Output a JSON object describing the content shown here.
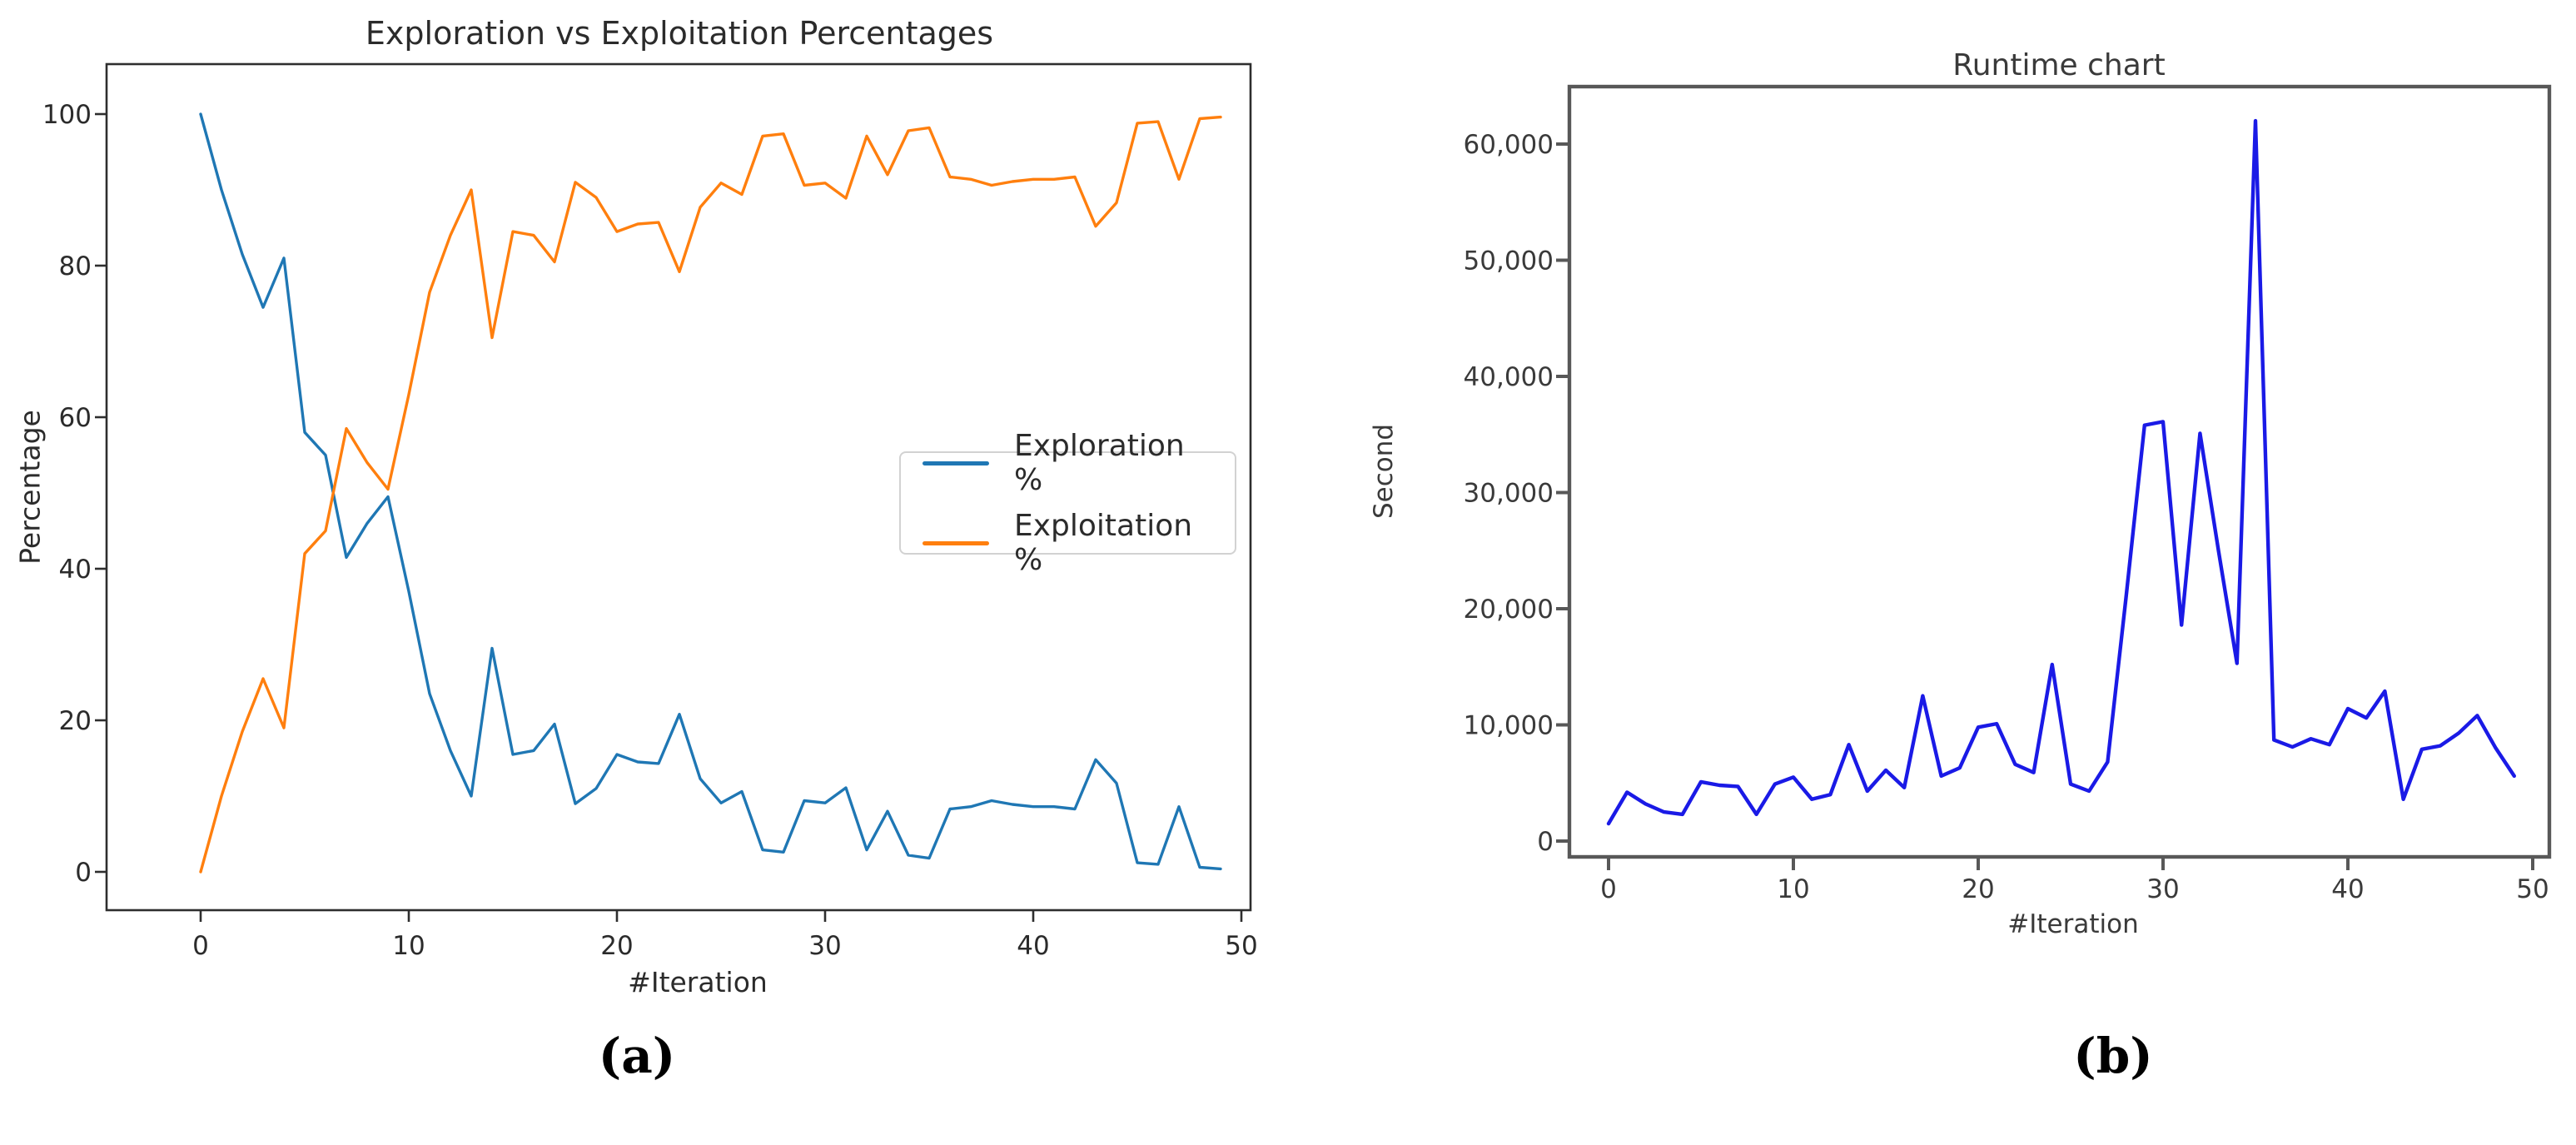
{
  "figure": {
    "caption_a": "(a)",
    "caption_b": "(b)"
  },
  "chart_data": [
    {
      "id": "exploration-vs-exploitation",
      "type": "line",
      "title": "Exploration vs Exploitation Percentages",
      "xlabel": "#Iteration",
      "ylabel": "Percentage",
      "grid": false,
      "xlim": [
        -4.5,
        50.6
      ],
      "ylim": [
        -5,
        110
      ],
      "x_ticks": [
        0,
        10,
        20,
        30,
        40,
        50
      ],
      "y_ticks": [
        0,
        20,
        40,
        60,
        80,
        100
      ],
      "legend": {
        "position": "center right",
        "entries": [
          "Exploration %",
          "Exploitation %"
        ]
      },
      "x": [
        0,
        1,
        2,
        3,
        4,
        5,
        6,
        7,
        8,
        9,
        10,
        11,
        12,
        13,
        14,
        15,
        16,
        17,
        18,
        19,
        20,
        21,
        22,
        23,
        24,
        25,
        26,
        27,
        28,
        29,
        30,
        31,
        32,
        33,
        34,
        35,
        36,
        37,
        38,
        39,
        40,
        41,
        42,
        43,
        44,
        45,
        46,
        47,
        48,
        49
      ],
      "series": [
        {
          "name": "Exploration %",
          "color": "#1f77b4",
          "values": [
            100,
            90,
            81.5,
            74.5,
            81,
            58,
            55,
            41.5,
            46,
            49.5,
            37,
            23.5,
            16,
            10,
            29.5,
            15.5,
            16,
            19.5,
            9,
            11,
            15.5,
            14.5,
            14.3,
            20.8,
            12.3,
            9.1,
            10.6,
            2.9,
            2.6,
            9.4,
            9.1,
            11.1,
            2.9,
            8,
            2.2,
            1.8,
            8.3,
            8.6,
            9.4,
            8.9,
            8.6,
            8.6,
            8.3,
            14.8,
            11.7,
            1.2,
            1,
            8.6,
            0.6,
            0.4
          ]
        },
        {
          "name": "Exploitation %",
          "color": "#ff7f0e",
          "values": [
            0,
            10,
            18.5,
            25.5,
            19,
            42,
            45,
            58.5,
            54,
            50.5,
            63,
            76.5,
            84,
            90,
            70.5,
            84.5,
            84,
            80.5,
            91,
            89,
            84.5,
            85.5,
            85.7,
            79.2,
            87.7,
            90.9,
            89.4,
            97.1,
            97.4,
            90.6,
            90.9,
            88.9,
            97.1,
            92,
            97.8,
            98.2,
            91.7,
            91.4,
            90.6,
            91.1,
            91.4,
            91.4,
            91.7,
            85.2,
            88.3,
            98.8,
            99,
            91.4,
            99.4,
            99.6
          ]
        }
      ]
    },
    {
      "id": "runtime-chart",
      "type": "line",
      "title": "Runtime chart",
      "xlabel": "#Iteration",
      "ylabel": "Second",
      "grid": false,
      "xlim": [
        -2.4,
        50.9
      ],
      "ylim": [
        -1500,
        65000
      ],
      "x_ticks": [
        0,
        10,
        20,
        30,
        40,
        50
      ],
      "y_ticks": [
        0,
        10000,
        20000,
        30000,
        40000,
        50000,
        60000
      ],
      "y_tick_labels": [
        "0",
        "10,000",
        "20,000",
        "30,000",
        "40,000",
        "50,000",
        "60,000"
      ],
      "legend": null,
      "x": [
        0,
        1,
        2,
        3,
        4,
        5,
        6,
        7,
        8,
        9,
        10,
        11,
        12,
        13,
        14,
        15,
        16,
        17,
        18,
        19,
        20,
        21,
        22,
        23,
        24,
        25,
        26,
        27,
        28,
        29,
        30,
        31,
        32,
        33,
        34,
        35,
        36,
        37,
        38,
        39,
        40,
        41,
        42,
        43,
        44,
        45,
        46,
        47,
        48,
        49
      ],
      "series": [
        {
          "name": "Runtime",
          "color": "#1a1ae6",
          "values": [
            1500,
            4200,
            3200,
            2500,
            2300,
            5100,
            4800,
            4700,
            2300,
            4900,
            5500,
            3600,
            4000,
            8300,
            4300,
            6100,
            4600,
            12500,
            5600,
            6300,
            9800,
            10100,
            6600,
            5900,
            15200,
            4900,
            4300,
            6800,
            21000,
            35800,
            36100,
            18600,
            35100,
            25000,
            15300,
            62000,
            8700,
            8100,
            8800,
            8300,
            11400,
            10600,
            12900,
            3600,
            7900,
            8200,
            9300,
            10800,
            8000,
            5600
          ]
        }
      ]
    }
  ]
}
